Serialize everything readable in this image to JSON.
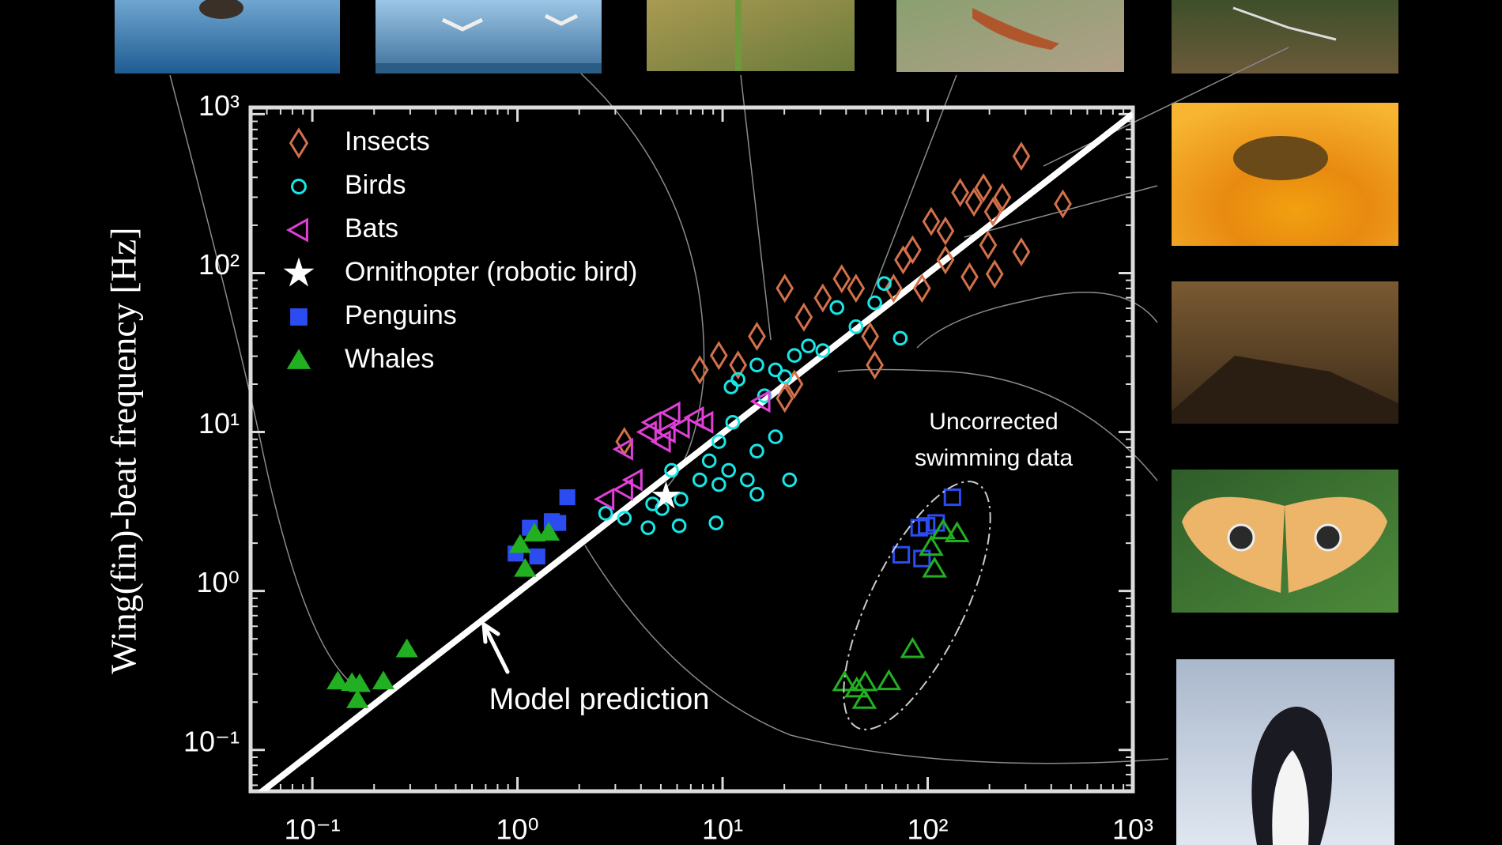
{
  "chart_data": {
    "type": "scatter",
    "y_label": "Wing(fin)-beat frequency [Hz]",
    "log_x": true,
    "log_y": true,
    "minor_ticks": true,
    "xlim": [
      0.05,
      1000
    ],
    "ylim": [
      0.055,
      1100
    ],
    "xticks": [
      {
        "value": 0.1,
        "label": "10⁻¹"
      },
      {
        "value": 1,
        "label": "10⁰"
      },
      {
        "value": 10,
        "label": "10¹"
      },
      {
        "value": 100,
        "label": "10²"
      },
      {
        "value": 1000,
        "label": "10³"
      }
    ],
    "yticks": [
      {
        "value": 0.1,
        "label": "10⁻¹"
      },
      {
        "value": 1,
        "label": "10⁰"
      },
      {
        "value": 10,
        "label": "10¹"
      },
      {
        "value": 100,
        "label": "10²"
      },
      {
        "value": 1000,
        "label": "10³"
      }
    ],
    "series": [
      {
        "name": "Insects",
        "marker": "diamond",
        "filled": false,
        "color": "#d2714a",
        "x": [
          3.32,
          7.74,
          9.59,
          11.9,
          14.7,
          20.1,
          24.9,
          30.8,
          38.1,
          44.7,
          52.4,
          68.2,
          75.9,
          84.4,
          104,
          122,
          144,
          168,
          208,
          231,
          286,
          456,
          286,
          212,
          160,
          122,
          93.8,
          55.2,
          20.1,
          22.4,
          197,
          187
        ],
        "values": [
          8.71,
          24.6,
          30.3,
          26.4,
          40.0,
          80.2,
          52.8,
          69.7,
          92.0,
          80.2,
          40.0,
          80.2,
          121,
          140,
          211,
          184,
          321,
          279,
          243,
          299,
          543,
          272,
          136,
          98.6,
          94.6,
          121,
          80.2,
          26.4,
          16.3,
          20.0,
          150,
          344
        ]
      },
      {
        "name": "Birds",
        "marker": "circle",
        "filled": false,
        "color": "#19e6e6",
        "x": [
          2.69,
          3.32,
          4.33,
          5.07,
          6.27,
          7.74,
          8.61,
          10.7,
          13.2,
          9.59,
          11.2,
          14.7,
          18.1,
          21.2,
          9.29,
          6.14,
          9.59,
          11.9,
          14.7,
          18.1,
          22.4,
          26.2,
          30.8,
          36.1,
          44.7,
          55.2,
          61.4,
          73.5,
          20.1,
          16.0,
          11.0,
          5.64,
          4.56,
          14.7
        ],
        "values": [
          3.08,
          2.87,
          2.5,
          3.3,
          3.78,
          5.0,
          6.59,
          5.74,
          5.0,
          8.71,
          11.5,
          7.59,
          9.33,
          5.0,
          2.68,
          2.57,
          4.67,
          21.4,
          26.4,
          24.6,
          30.3,
          34.8,
          32.5,
          60.7,
          46.0,
          65.0,
          85.9,
          38.9,
          22.3,
          16.9,
          19.2,
          5.74,
          3.53,
          4.06
        ]
      },
      {
        "name": "Bats",
        "marker": "triangle-left",
        "filled": false,
        "color": "#e040d8",
        "x": [
          3.32,
          4.56,
          5.07,
          5.64,
          6.27,
          7.35,
          8.17,
          5.35,
          2.69,
          3.32,
          3.69,
          15.5,
          4.33
        ],
        "values": [
          7.8,
          11.5,
          8.71,
          13.2,
          10.7,
          12.3,
          11.5,
          10.0,
          3.78,
          4.35,
          5.0,
          15.6,
          10.0
        ]
      },
      {
        "name": "Ornithopter (robotic bird)",
        "marker": "star",
        "filled": true,
        "color": "#ffffff",
        "x": [
          5.3
        ],
        "values": [
          3.94
        ]
      },
      {
        "name": "Penguins",
        "marker": "square",
        "filled": true,
        "color": "#2a4cf0",
        "x": [
          0.98,
          1.25,
          1.15,
          1.58,
          1.75,
          1.47
        ],
        "values": [
          1.72,
          1.65,
          2.5,
          2.68,
          3.89,
          2.75
        ]
      },
      {
        "name": "Whales",
        "marker": "triangle",
        "filled": true,
        "color": "#22b022",
        "x": [
          0.133,
          0.156,
          0.166,
          0.17,
          0.222,
          0.289,
          1.09,
          1.03,
          1.21,
          1.42
        ],
        "values": [
          0.27,
          0.264,
          0.206,
          0.26,
          0.27,
          0.43,
          1.38,
          1.95,
          2.3,
          2.33
        ]
      },
      {
        "marker": "square",
        "filled": false,
        "color": "#2a4cf0",
        "x": [
          74.3,
          93.8,
          90.9,
          110,
          132,
          98.8
        ],
        "values": [
          1.69,
          1.6,
          2.5,
          2.68,
          3.89,
          2.57
        ]
      },
      {
        "marker": "triangle",
        "filled": false,
        "color": "#22b022",
        "x": [
          39.3,
          45.1,
          49.1,
          49.6,
          64.7,
          84.4,
          108,
          104,
          119,
          139
        ],
        "values": [
          0.266,
          0.243,
          0.206,
          0.266,
          0.27,
          0.43,
          1.38,
          1.89,
          2.4,
          2.3
        ]
      }
    ],
    "model_line": {
      "name": "Model prediction",
      "color": "#ffffff",
      "x": [
        0.056,
        1000
      ],
      "values": [
        0.054,
        1000
      ]
    },
    "swim_label": [
      "Uncorrected",
      "swimming data"
    ]
  }
}
